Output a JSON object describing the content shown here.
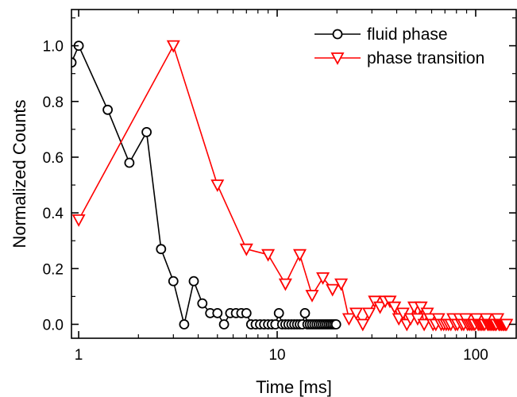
{
  "chart_data": {
    "type": "line",
    "title": "",
    "xlabel": "Time [ms]",
    "ylabel": "Normalized Counts",
    "x_scale": "log",
    "xlim": [
      0.92,
      160
    ],
    "ylim": [
      -0.05,
      1.13
    ],
    "x_ticks": [
      1,
      10,
      100
    ],
    "x_tick_labels": [
      "1",
      "10",
      "100"
    ],
    "y_ticks": [
      0.0,
      0.2,
      0.4,
      0.6,
      0.8,
      1.0
    ],
    "y_tick_labels": [
      "0.0",
      "0.2",
      "0.4",
      "0.6",
      "0.8",
      "1.0"
    ],
    "grid": false,
    "legend_position": "top-right",
    "series": [
      {
        "name": "fluid phase",
        "color": "#000000",
        "marker": "circle",
        "points": [
          [
            0.92,
            0.94
          ],
          [
            1.0,
            1.0
          ],
          [
            1.4,
            0.77
          ],
          [
            1.8,
            0.58
          ],
          [
            2.2,
            0.69
          ],
          [
            2.6,
            0.27
          ],
          [
            3.0,
            0.155
          ],
          [
            3.4,
            0.0
          ],
          [
            3.8,
            0.155
          ],
          [
            4.2,
            0.075
          ],
          [
            4.6,
            0.04
          ],
          [
            5.0,
            0.04
          ],
          [
            5.4,
            0.0
          ],
          [
            5.8,
            0.04
          ],
          [
            6.2,
            0.04
          ],
          [
            6.6,
            0.04
          ],
          [
            7.0,
            0.04
          ],
          [
            7.4,
            0.0
          ],
          [
            7.8,
            0.0
          ],
          [
            8.2,
            0.0
          ],
          [
            8.6,
            0.0
          ],
          [
            9.0,
            0.0
          ],
          [
            9.4,
            0.0
          ],
          [
            9.8,
            0.0
          ],
          [
            10.2,
            0.04
          ],
          [
            10.6,
            0.0
          ],
          [
            11.0,
            0.0
          ],
          [
            11.4,
            0.0
          ],
          [
            11.8,
            0.0
          ],
          [
            12.2,
            0.0
          ],
          [
            12.6,
            0.0
          ],
          [
            13.0,
            0.0
          ],
          [
            13.4,
            0.0
          ],
          [
            13.8,
            0.04
          ],
          [
            14.2,
            0.0
          ],
          [
            14.6,
            0.0
          ],
          [
            15.0,
            0.0
          ],
          [
            15.4,
            0.0
          ],
          [
            15.8,
            0.0
          ],
          [
            16.2,
            0.0
          ],
          [
            16.6,
            0.0
          ],
          [
            17.0,
            0.0
          ],
          [
            17.4,
            0.0
          ],
          [
            17.8,
            0.0
          ],
          [
            18.2,
            0.0
          ],
          [
            18.6,
            0.0
          ],
          [
            19.0,
            0.0
          ],
          [
            19.4,
            0.0
          ],
          [
            19.8,
            0.0
          ]
        ]
      },
      {
        "name": "phase transition",
        "color": "#ff0000",
        "marker": "triangle-down",
        "points": [
          [
            1.0,
            0.375
          ],
          [
            3.0,
            1.0
          ],
          [
            5.0,
            0.5
          ],
          [
            7.0,
            0.27
          ],
          [
            9.0,
            0.25
          ],
          [
            11.0,
            0.145
          ],
          [
            13.0,
            0.25
          ],
          [
            15.0,
            0.104
          ],
          [
            17.0,
            0.167
          ],
          [
            19.0,
            0.125
          ],
          [
            21.0,
            0.145
          ],
          [
            23.0,
            0.02
          ],
          [
            25.0,
            0.04
          ],
          [
            27.0,
            0.0
          ],
          [
            29.0,
            0.04
          ],
          [
            31.0,
            0.083
          ],
          [
            33.0,
            0.062
          ],
          [
            35.0,
            0.083
          ],
          [
            37.0,
            0.083
          ],
          [
            39.0,
            0.062
          ],
          [
            41.0,
            0.02
          ],
          [
            43.0,
            0.04
          ],
          [
            45.0,
            0.0
          ],
          [
            47.0,
            0.02
          ],
          [
            49.0,
            0.062
          ],
          [
            51.0,
            0.02
          ],
          [
            53.0,
            0.062
          ],
          [
            55.0,
            0.0
          ],
          [
            57.0,
            0.04
          ],
          [
            59.0,
            0.02
          ],
          [
            61.0,
            0.0
          ],
          [
            63.0,
            0.0
          ],
          [
            65.0,
            0.02
          ],
          [
            67.0,
            0.0
          ],
          [
            69.0,
            0.0
          ],
          [
            71.0,
            0.0
          ],
          [
            73.0,
            0.0
          ],
          [
            75.0,
            0.0
          ],
          [
            77.0,
            0.02
          ],
          [
            79.0,
            0.0
          ],
          [
            81.0,
            0.0
          ],
          [
            83.0,
            0.02
          ],
          [
            85.0,
            0.0
          ],
          [
            87.0,
            0.0
          ],
          [
            89.0,
            0.02
          ],
          [
            91.0,
            0.0
          ],
          [
            93.0,
            0.0
          ],
          [
            95.0,
            0.0
          ],
          [
            97.0,
            0.0
          ],
          [
            99.0,
            0.0
          ],
          [
            101.0,
            0.02
          ],
          [
            103.0,
            0.0
          ],
          [
            105.0,
            0.0
          ],
          [
            107.0,
            0.0
          ],
          [
            109.0,
            0.0
          ],
          [
            111.0,
            0.0
          ],
          [
            113.0,
            0.02
          ],
          [
            115.0,
            0.0
          ],
          [
            117.0,
            0.0
          ],
          [
            119.0,
            0.0
          ],
          [
            121.0,
            0.0
          ],
          [
            123.0,
            0.0
          ],
          [
            125.0,
            0.0
          ],
          [
            127.0,
            0.0
          ],
          [
            129.0,
            0.02
          ],
          [
            131.0,
            0.0
          ],
          [
            133.0,
            0.0
          ],
          [
            135.0,
            0.0
          ],
          [
            137.0,
            0.0
          ],
          [
            139.0,
            0.0
          ],
          [
            141.0,
            0.0
          ],
          [
            143.0,
            0.0
          ]
        ]
      }
    ]
  }
}
